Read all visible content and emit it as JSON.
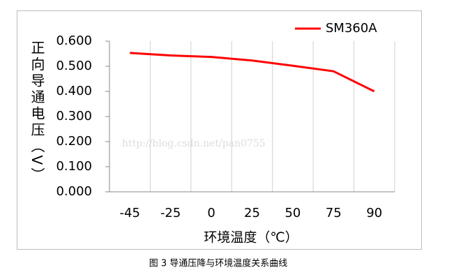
{
  "chart_data": {
    "type": "line",
    "caption": "图 3 导通压降与环境温度关系曲线",
    "watermark": "http://blog.csdn.net/pan0755",
    "x_label": "环境温度（℃）",
    "y_label": "正向导通电压（V）",
    "categories": [
      "-45",
      "-25",
      "0",
      "25",
      "50",
      "75",
      "90"
    ],
    "series": [
      {
        "name": "SM360A",
        "color": "#ff0000",
        "values": [
          0.553,
          0.543,
          0.537,
          0.523,
          0.502,
          0.48,
          0.4
        ]
      }
    ],
    "ylim": [
      0,
      0.6
    ],
    "yticks": [
      {
        "value": 0,
        "label": "0.000"
      },
      {
        "value": 0.1,
        "label": "0.100"
      },
      {
        "value": 0.2,
        "label": "0.200"
      },
      {
        "value": 0.3,
        "label": "0.300"
      },
      {
        "value": 0.4,
        "label": "0.400"
      },
      {
        "value": 0.5,
        "label": "0.500"
      },
      {
        "value": 0.6,
        "label": "0.600"
      }
    ],
    "grid": "x",
    "legend": "upper right"
  }
}
